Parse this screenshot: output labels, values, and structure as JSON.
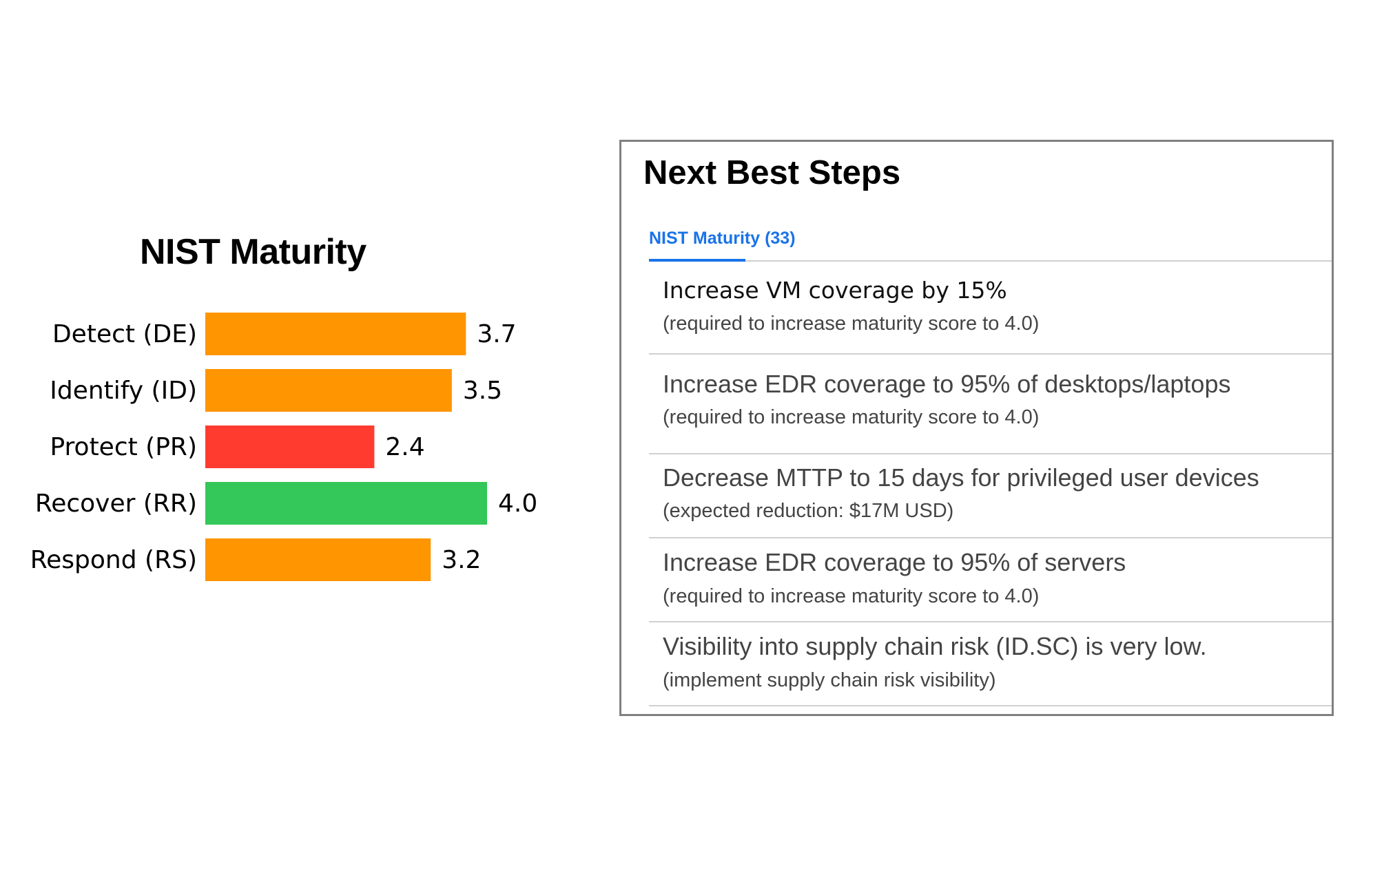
{
  "chart_data": {
    "type": "bar",
    "orientation": "horizontal",
    "title": "NIST Maturity",
    "categories": [
      "Detect (DE)",
      "Identify (ID)",
      "Protect (PR)",
      "Recover (RR)",
      "Respond (RS)"
    ],
    "values": [
      3.7,
      3.5,
      2.4,
      4.0,
      3.2
    ],
    "value_labels": [
      "3.7",
      "3.5",
      "2.4",
      "4.0",
      "3.2"
    ],
    "colors": [
      "#ff9500",
      "#ff9500",
      "#ff3b30",
      "#34c759",
      "#ff9500"
    ],
    "xlabel": "",
    "ylabel": "",
    "grid": false,
    "legend": "none"
  },
  "panel": {
    "title": "Next Best Steps",
    "tab_label": "NIST Maturity (33)",
    "accent_color": "#1a73e8",
    "steps": [
      {
        "main": "Increase VM coverage by 15%",
        "sub": "(required to increase maturity score to 4.0)"
      },
      {
        "main": "Increase EDR coverage to 95% of desktops/laptops",
        "sub": "(required to increase maturity score to 4.0)"
      },
      {
        "main": "Decrease MTTP to 15 days for privileged user devices",
        "sub": "(expected reduction: $17M USD)"
      },
      {
        "main": "Increase EDR coverage to 95% of servers",
        "sub": "(required to increase maturity score to 4.0)"
      },
      {
        "main": "Visibility into supply chain risk (ID.SC) is very low.",
        "sub": "(implement supply chain risk visibility)"
      }
    ]
  }
}
